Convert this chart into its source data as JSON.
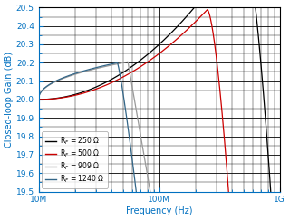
{
  "title": "",
  "xlabel": "Frequency (Hz)",
  "ylabel": "Closed-loop Gain (dB)",
  "xlim": [
    10000000.0,
    1000000000.0
  ],
  "ylim": [
    19.5,
    20.5
  ],
  "yticks": [
    19.5,
    19.6,
    19.7,
    19.8,
    19.9,
    20.0,
    20.1,
    20.2,
    20.3,
    20.4,
    20.5
  ],
  "background_color": "#ffffff",
  "legend_entries": [
    {
      "label": "R$_F$ = 250 Ω",
      "color": "#000000"
    },
    {
      "label": "R$_F$ = 500 Ω",
      "color": "#cc0000"
    },
    {
      "label": "R$_F$ = 909 Ω",
      "color": "#999999"
    },
    {
      "label": "R$_F$ = 1240 Ω",
      "color": "#336688"
    }
  ]
}
